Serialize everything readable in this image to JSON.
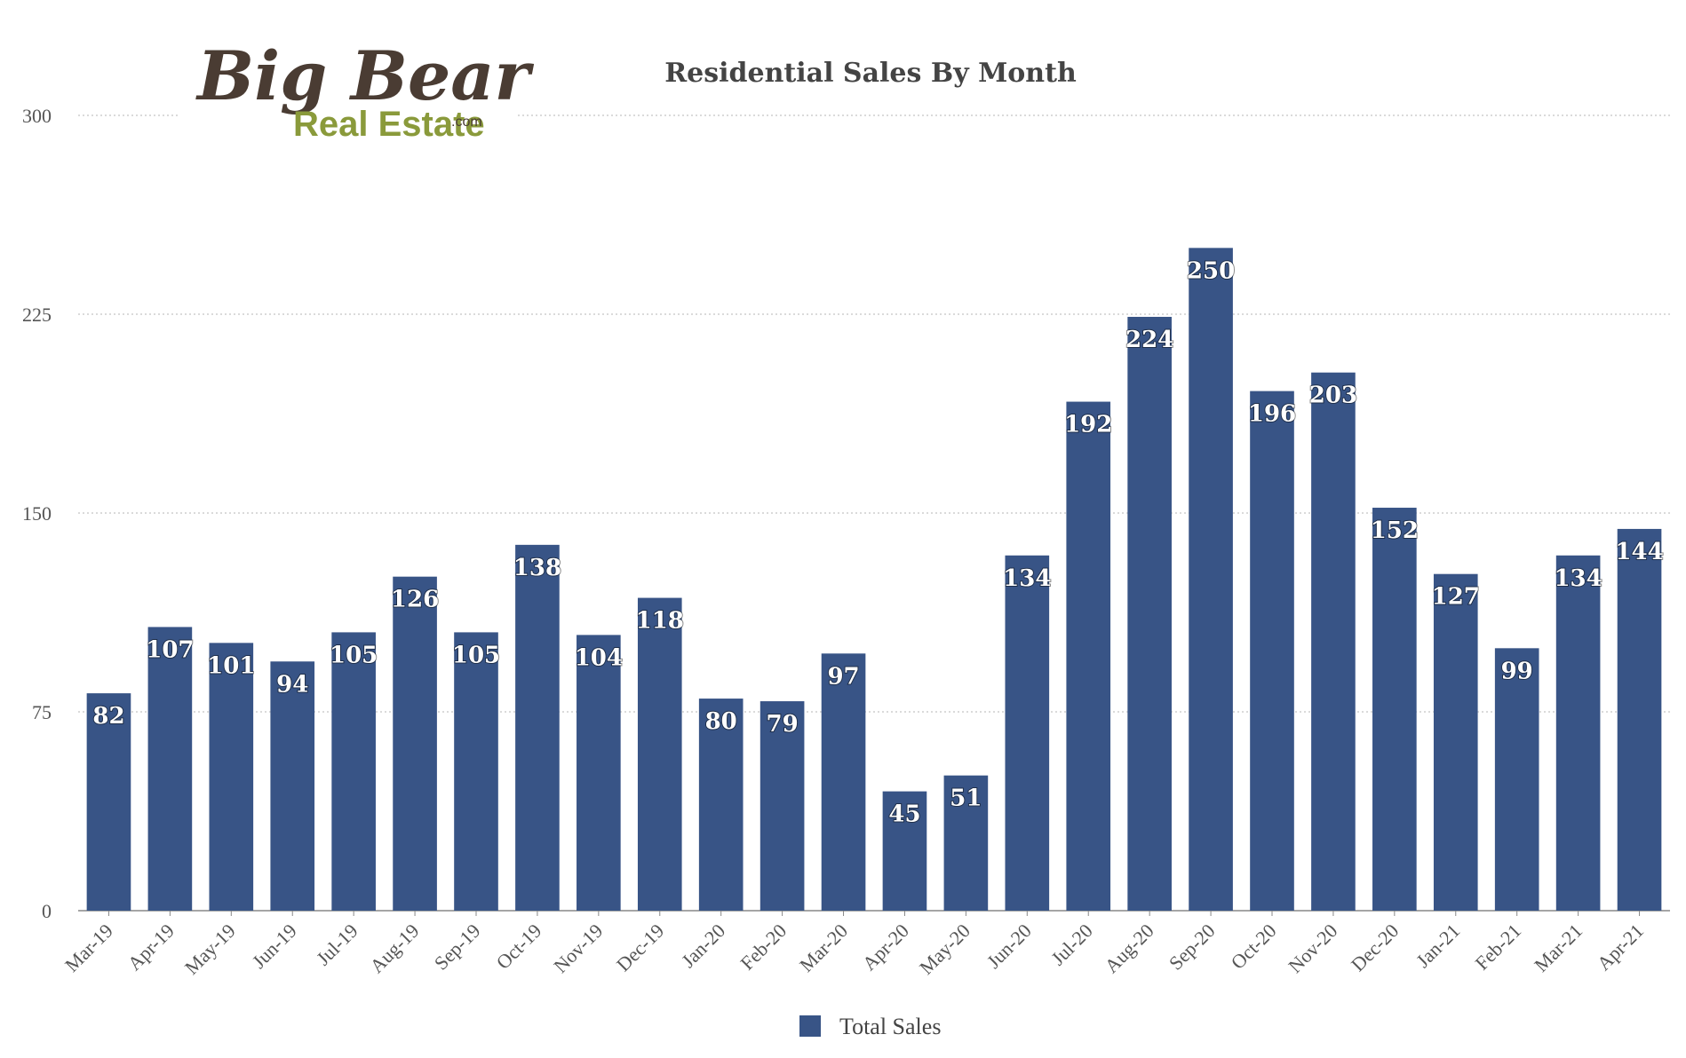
{
  "logo": {
    "line1": "Big Bear",
    "line2": "Real Estate",
    "suffix": ".com"
  },
  "chart_data": {
    "type": "bar",
    "title": "Residential Sales By Month",
    "xlabel": "",
    "ylabel": "",
    "ylim": [
      0,
      300
    ],
    "yticks": [
      0,
      75,
      150,
      225,
      300
    ],
    "grid": true,
    "legend_position": "bottom",
    "bar_color": "#385486",
    "categories": [
      "Mar-19",
      "Apr-19",
      "May-19",
      "Jun-19",
      "Jul-19",
      "Aug-19",
      "Sep-19",
      "Oct-19",
      "Nov-19",
      "Dec-19",
      "Jan-20",
      "Feb-20",
      "Mar-20",
      "Apr-20",
      "May-20",
      "Jun-20",
      "Jul-20",
      "Aug-20",
      "Sep-20",
      "Oct-20",
      "Nov-20",
      "Dec-20",
      "Jan-21",
      "Feb-21",
      "Mar-21",
      "Apr-21"
    ],
    "series": [
      {
        "name": "Total Sales",
        "values": [
          82,
          107,
          101,
          94,
          105,
          126,
          105,
          138,
          104,
          118,
          80,
          79,
          97,
          45,
          51,
          134,
          192,
          224,
          250,
          196,
          203,
          152,
          127,
          99,
          134,
          144
        ]
      }
    ]
  }
}
